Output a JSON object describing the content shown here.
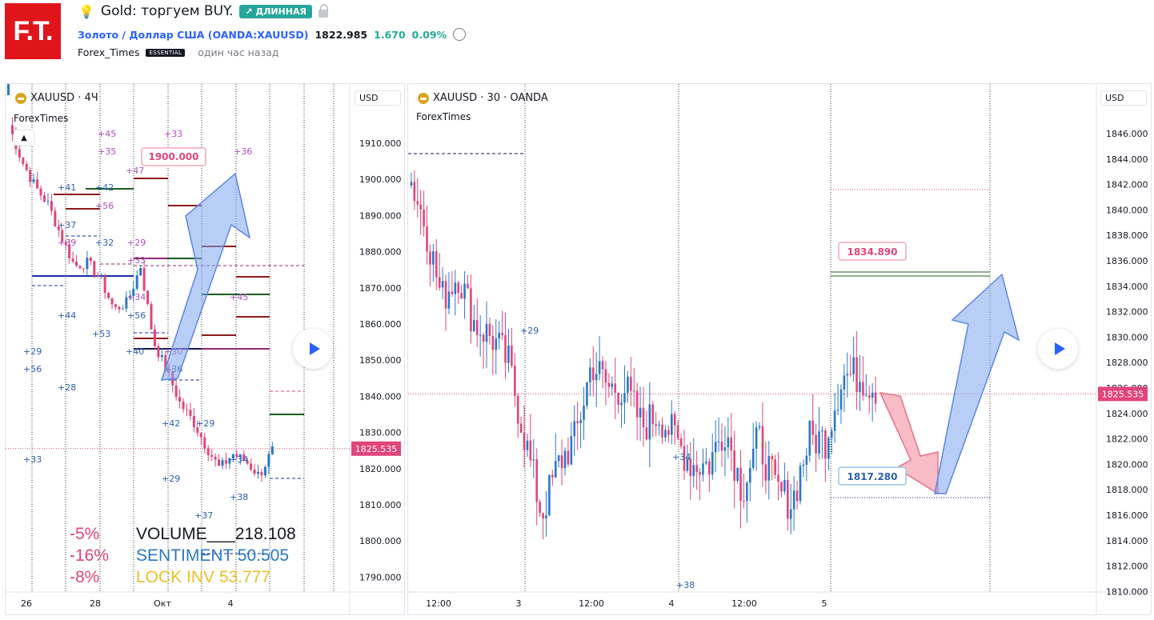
{
  "header": {
    "logo_text": "F.T.",
    "idea_title": "Gold: торгуем BUY.",
    "direction_badge": "↗ ДЛИННАЯ",
    "symbol_name": "Золото / Доллар США",
    "symbol_code": "(OANDA:XAUUSD)",
    "price": "1822.985",
    "change": "1.670",
    "change_pct": "0.09%",
    "author": "Forex_Times",
    "author_badge": "ESSENTIAL",
    "published": "один час назад",
    "icons": [
      "bulb-icon",
      "lock-icon",
      "alarm-clock-icon"
    ]
  },
  "left_pane": {
    "title": "XAUUSD · 4Ч",
    "indicator": "ForexTimes",
    "currency": "USD",
    "y_ticks": [
      "1910.000",
      "1900.000",
      "1890.000",
      "1880.000",
      "1870.000",
      "1860.000",
      "1850.000",
      "1840.000",
      "1830.000",
      "1820.000",
      "1810.000",
      "1800.000",
      "1790.000"
    ],
    "x_ticks": [
      "26",
      "28",
      "Окт",
      "4"
    ],
    "price_tag": "1825.535",
    "target_label": "1900.000",
    "stats": {
      "pct1": "-5%",
      "pct2": "-16%",
      "pct3": "-8%",
      "volume": "VOLUME___218.108",
      "sentiment": "SENTIMENT 50.505",
      "lockinv": "LOCK INV   53.777"
    },
    "annotations": [
      "+41",
      "+45",
      "+35",
      "+42",
      "+56",
      "+37",
      "+39",
      "+32",
      "+29",
      "+33",
      "+44",
      "+53",
      "+56",
      "+40",
      "+30",
      "+36",
      "+29",
      "+56",
      "+28",
      "+42",
      "+29",
      "+34",
      "+29",
      "+38",
      "+37",
      "+33",
      "+33",
      "+36",
      "+47",
      "+45"
    ]
  },
  "right_pane": {
    "title": "XAUUSD · 30 · OANDA",
    "indicator": "ForexTimes",
    "currency": "USD",
    "y_ticks": [
      "1846.000",
      "1844.000",
      "1842.000",
      "1840.000",
      "1838.000",
      "1836.000",
      "1834.000",
      "1832.000",
      "1830.000",
      "1828.000",
      "1826.000",
      "1824.000",
      "1822.000",
      "1820.000",
      "1818.000",
      "1816.000",
      "1814.000",
      "1812.000",
      "1810.000"
    ],
    "x_ticks": [
      "12:00",
      "3",
      "12:00",
      "4",
      "12:00",
      "5"
    ],
    "price_tag": "1825.535",
    "target_label": "1834.890",
    "stop_label": "1817.280",
    "annotations": [
      "+29",
      "+34",
      "+38"
    ]
  },
  "colors": {
    "up": "#2962ff",
    "down": "#e0457b",
    "up_candle": "#2a78c7",
    "accent_green": "#26a69a",
    "red_tag": "#e0457b"
  }
}
